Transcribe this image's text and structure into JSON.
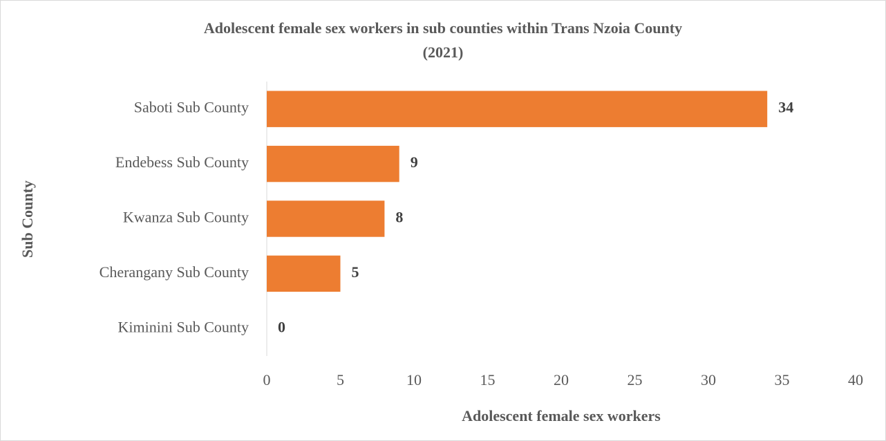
{
  "chart_data": {
    "type": "bar",
    "orientation": "horizontal",
    "title": [
      "Adolescent female sex workers in sub counties within Trans Nzoia County",
      "(2021)"
    ],
    "categories": [
      "Saboti Sub County",
      "Endebess Sub County",
      "Kwanza Sub County",
      "Cherangany Sub County",
      "Kiminini Sub County"
    ],
    "values": [
      34,
      9,
      8,
      5,
      0
    ],
    "color": "#ed7d31",
    "xlabel": "Adolescent female sex workers",
    "ylabel": "Sub County",
    "xlim": [
      0,
      40
    ],
    "xticks": [
      0,
      5,
      10,
      15,
      20,
      25,
      30,
      35,
      40
    ],
    "grid": false
  }
}
